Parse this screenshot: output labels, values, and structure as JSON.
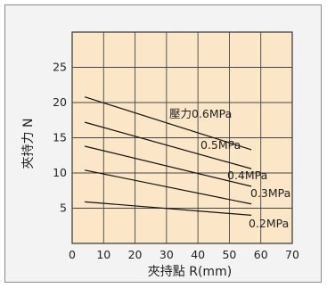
{
  "chart_data": {
    "type": "line",
    "title": "",
    "xlabel": "夾持點 R(mm)",
    "ylabel": "夾持力 N",
    "xlim": [
      0,
      70
    ],
    "ylim": [
      0,
      30
    ],
    "x_ticks": [
      0,
      10,
      20,
      30,
      40,
      50,
      60,
      70
    ],
    "y_ticks": [
      5,
      10,
      15,
      20,
      25
    ],
    "grid": true,
    "plot_background": "#fbe7c7",
    "line_color": "#111111",
    "series": [
      {
        "name": "壓力0.6MPa",
        "x": [
          4,
          57
        ],
        "y": [
          20.8,
          13.3
        ]
      },
      {
        "name": "0.5MPa",
        "x": [
          4,
          57
        ],
        "y": [
          17.2,
          10.6
        ]
      },
      {
        "name": "0.4MPa",
        "x": [
          4,
          57
        ],
        "y": [
          13.8,
          8.1
        ]
      },
      {
        "name": "0.3MPa",
        "x": [
          4,
          57
        ],
        "y": [
          10.4,
          5.6
        ]
      },
      {
        "name": "0.2MPa",
        "x": [
          4,
          57
        ],
        "y": [
          5.9,
          4.0
        ]
      }
    ]
  }
}
